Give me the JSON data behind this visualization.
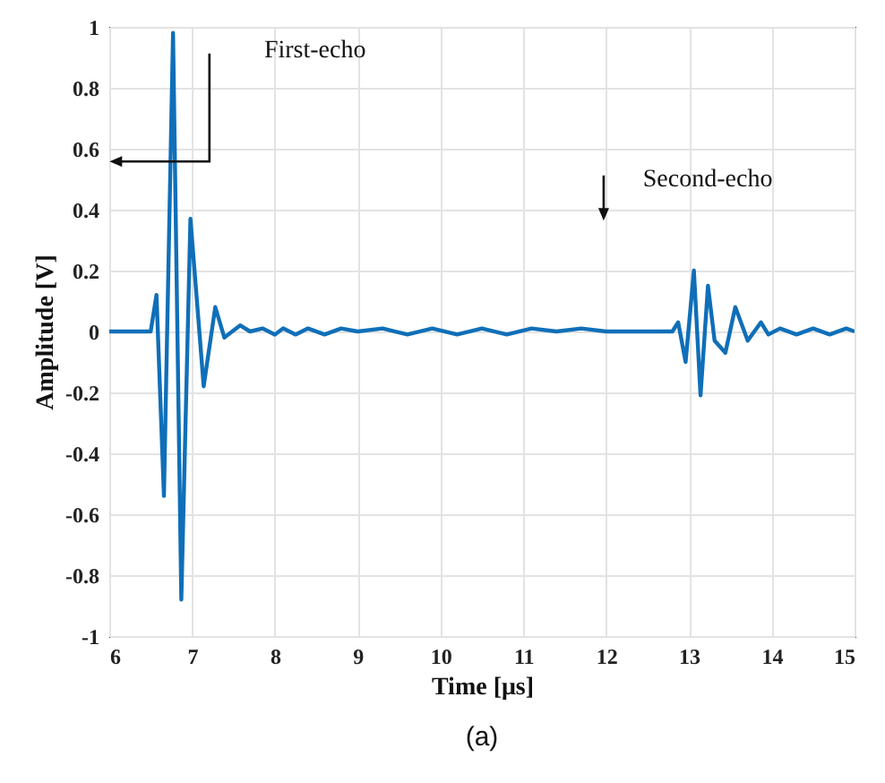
{
  "chart_data": {
    "type": "line",
    "xlabel": "Time [μs]",
    "ylabel": "Amplitude [V]",
    "x": [
      6,
      6.3,
      6.5,
      6.57,
      6.66,
      6.77,
      6.87,
      6.98,
      7.14,
      7.28,
      7.39,
      7.58,
      7.7,
      7.85,
      8.0,
      8.1,
      8.25,
      8.4,
      8.6,
      8.8,
      9.0,
      9.3,
      9.6,
      9.9,
      10.2,
      10.5,
      10.8,
      11.1,
      11.4,
      11.7,
      12.0,
      12.3,
      12.6,
      12.8,
      12.87,
      12.96,
      13.06,
      13.14,
      13.23,
      13.31,
      13.44,
      13.56,
      13.71,
      13.87,
      13.96,
      14.1,
      14.3,
      14.5,
      14.7,
      14.9,
      15
    ],
    "series": [
      {
        "color": "#0f6fb8",
        "values": [
          0,
          0,
          0,
          0.12,
          -0.54,
          0.98,
          -0.88,
          0.37,
          -0.18,
          0.08,
          -0.02,
          0.02,
          0,
          0.01,
          -0.01,
          0.01,
          -0.01,
          0.01,
          -0.01,
          0.01,
          0,
          0.01,
          -0.01,
          0.01,
          -0.01,
          0.01,
          -0.01,
          0.01,
          0,
          0.01,
          0,
          0,
          0,
          0,
          0.03,
          -0.1,
          0.2,
          -0.21,
          0.15,
          -0.03,
          -0.07,
          0.08,
          -0.03,
          0.03,
          -0.01,
          0.01,
          -0.01,
          0.01,
          -0.01,
          0.01,
          0
        ]
      }
    ],
    "xlim": [
      6,
      15
    ],
    "xticks": [
      6,
      7,
      8,
      9,
      10,
      11,
      12,
      13,
      14,
      15
    ],
    "ylim": [
      -1,
      1
    ],
    "yticks": [
      -1,
      -0.8,
      -0.6,
      -0.4,
      -0.2,
      0,
      0.2,
      0.4,
      0.6,
      0.8,
      1
    ],
    "grid": true,
    "marker": "none",
    "line_style": "solid",
    "annotations": [
      "First-echo",
      "Second-echo",
      "(a)"
    ]
  }
}
